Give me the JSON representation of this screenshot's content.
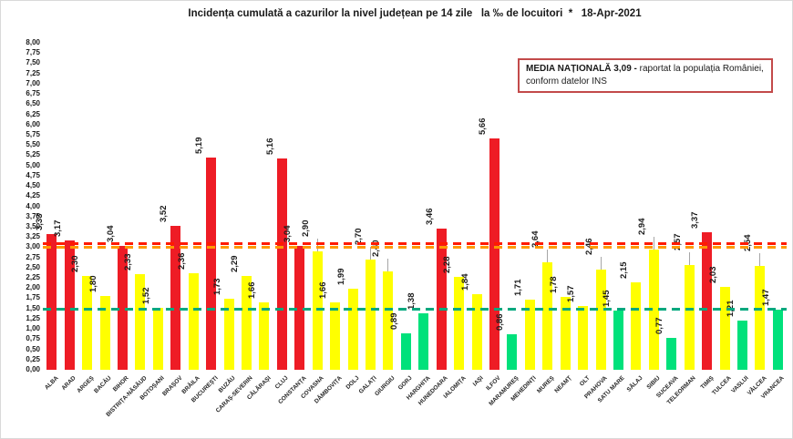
{
  "title": "Incidența cumulată a cazurilor la nivel județean pe 14 zile   la ‰ de locuitori  *   18-Apr-2021",
  "note": {
    "title_bold": "MEDIA NAȚIONALĂ 3,09 - ",
    "line1_rest": "raportat la populația României,",
    "line2": "conform datelor INS"
  },
  "chart_data": {
    "type": "bar",
    "title": "Incidența cumulată a cazurilor la nivel județean pe 14 zile la ‰ de locuitori * 18-Apr-2021",
    "xlabel": "",
    "ylabel": "",
    "ylim": [
      0,
      8
    ],
    "ytick_step": 0.25,
    "yticks": [
      "0,00",
      "0,25",
      "0,50",
      "0,75",
      "1,00",
      "1,25",
      "1,50",
      "1,75",
      "2,00",
      "2,25",
      "2,50",
      "2,75",
      "3,00",
      "3,25",
      "3,50",
      "3,75",
      "4,00",
      "4,25",
      "4,50",
      "4,75",
      "5,00",
      "5,25",
      "5,50",
      "5,75",
      "6,00",
      "6,25",
      "6,50",
      "6,75",
      "7,00",
      "7,25",
      "7,50",
      "7,75",
      "8,00"
    ],
    "grid": false,
    "legend": "none",
    "categories": [
      "ALBA",
      "ARAD",
      "ARGEȘ",
      "BACĂU",
      "BIHOR",
      "BISTRIȚA-NĂSĂUD",
      "BOTOȘANI",
      "BRAȘOV",
      "BRĂILA",
      "BUCUREȘTI",
      "BUZĂU",
      "CARAȘ-SEVERIN",
      "CĂLĂRAȘI",
      "CLUJ",
      "CONSTANȚA",
      "COVASNA",
      "DÂMBOVIȚA",
      "DOLJ",
      "GALAȚI",
      "GIURGIU",
      "GORJ",
      "HARGHITA",
      "HUNEDOARA",
      "IALOMIȚA",
      "IAȘI",
      "ILFOV",
      "MARAMUREȘ",
      "MEHEDINȚI",
      "MUREȘ",
      "NEAMȚ",
      "OLT",
      "PRAHOVA",
      "SATU MARE",
      "SĂLAJ",
      "SIBIU",
      "SUCEAVA",
      "TELEORMAN",
      "TIMIȘ",
      "TULCEA",
      "VASLUI",
      "VÂLCEA",
      "VRANCEA"
    ],
    "values": [
      3.33,
      3.17,
      2.3,
      1.8,
      3.04,
      2.33,
      1.52,
      3.52,
      2.36,
      5.19,
      1.73,
      2.29,
      1.66,
      5.16,
      3.04,
      2.9,
      1.66,
      1.99,
      2.7,
      2.4,
      0.89,
      1.38,
      3.46,
      2.28,
      1.84,
      5.66,
      0.86,
      1.71,
      2.64,
      1.78,
      1.57,
      2.46,
      1.45,
      2.15,
      2.94,
      0.77,
      2.57,
      3.37,
      2.03,
      1.21,
      2.54,
      1.47
    ],
    "value_labels": [
      "3,33",
      "3,17",
      "2,30",
      "1,80",
      "3,04",
      "2,33",
      "1,52",
      "3,52",
      "2,36",
      "5,19",
      "1,73",
      "2,29",
      "1,66",
      "5,16",
      "3,04",
      "2,90",
      "1,66",
      "1,99",
      "2,70",
      "2,40",
      "0,89",
      "1,38",
      "3,46",
      "2,28",
      "1,84",
      "5,66",
      "0,86",
      "1,71",
      "2,64",
      "1,78",
      "1,57",
      "2,46",
      "1,45",
      "2,15",
      "2,94",
      "0,77",
      "2,57",
      "3,37",
      "2,03",
      "1,21",
      "2,54",
      "1,47"
    ],
    "colors": [
      "red",
      "red",
      "yellow",
      "yellow",
      "red",
      "yellow",
      "yellow",
      "red",
      "yellow",
      "red",
      "yellow",
      "yellow",
      "yellow",
      "red",
      "red",
      "yellow",
      "yellow",
      "yellow",
      "yellow",
      "yellow",
      "green",
      "green",
      "red",
      "yellow",
      "yellow",
      "red",
      "green",
      "yellow",
      "yellow",
      "yellow",
      "yellow",
      "yellow",
      "green",
      "yellow",
      "yellow",
      "green",
      "yellow",
      "red",
      "yellow",
      "green",
      "yellow",
      "green"
    ],
    "bar_colors": {
      "red": "#ee1c25",
      "yellow": "#ffff00",
      "green": "#00e17b"
    },
    "ref_lines": [
      {
        "name": "media-nationala-3-09",
        "value": 3.09,
        "color": "#ff1a00"
      },
      {
        "name": "prag-3-00",
        "value": 3.0,
        "color": "#ff9900"
      },
      {
        "name": "prag-1-50",
        "value": 1.5,
        "color": "#00a87e"
      }
    ]
  }
}
